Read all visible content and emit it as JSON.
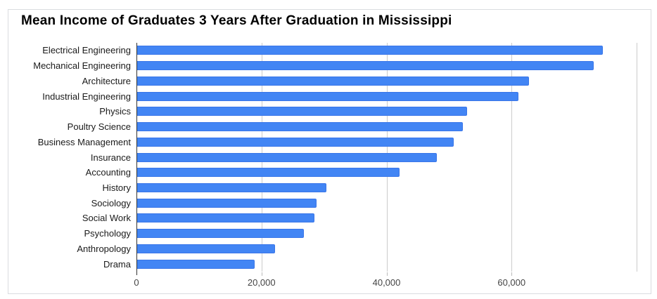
{
  "window": {
    "background": "#ffffff",
    "frame_border_color": "#dadce0"
  },
  "chart_data": {
    "type": "bar",
    "orientation": "horizontal",
    "title": "Mean Income of Graduates 3 Years After Graduation in Mississippi",
    "categories": [
      "Electrical Engineering",
      "Mechanical Engineering",
      "Architecture",
      "Industrial Engineering",
      "Physics",
      "Poultry Science",
      "Business Management",
      "Insurance",
      "Accounting",
      "History",
      "Sociology",
      "Social Work",
      "Psychology",
      "Anthropology",
      "Drama"
    ],
    "values": [
      74500,
      73000,
      62700,
      61000,
      52800,
      52100,
      50600,
      47900,
      42000,
      30300,
      28700,
      28300,
      26700,
      22100,
      18800
    ],
    "xlabel": "",
    "ylabel": "",
    "xlim": [
      0,
      80000
    ],
    "x_ticks": [
      {
        "value": 0,
        "label": "0"
      },
      {
        "value": 20000,
        "label": "20,000"
      },
      {
        "value": 40000,
        "label": "40,000"
      },
      {
        "value": 60000,
        "label": "60,000"
      }
    ],
    "gridlines": [
      20000,
      40000,
      60000,
      80000
    ],
    "grid": true,
    "legend": "none",
    "colors": {
      "bar": "#4285f4",
      "bar_border": "#3a76e8",
      "gridline": "#cccccc",
      "baseline": "#333333",
      "tick_label": "#444444",
      "category_label": "#1a1a1a",
      "title": "#000000"
    }
  }
}
